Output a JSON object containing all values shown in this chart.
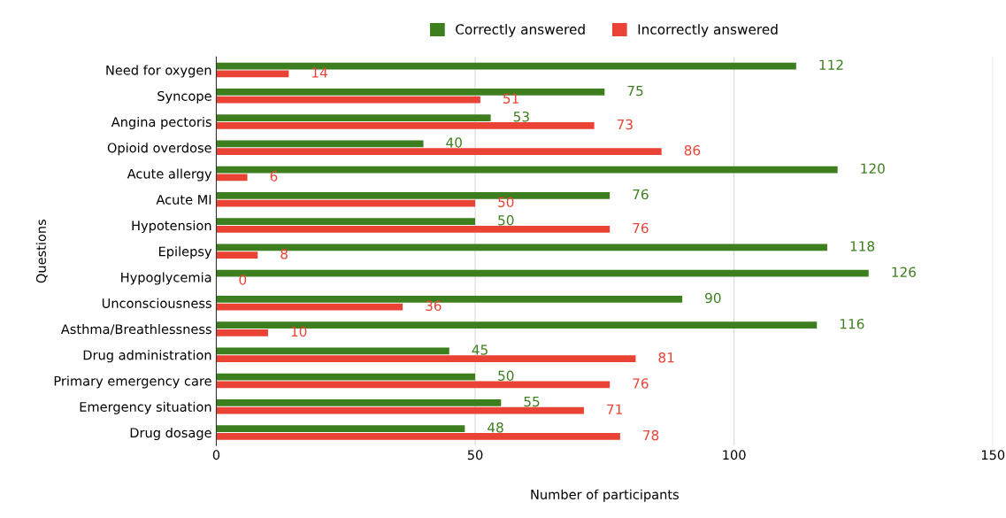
{
  "chart_data": {
    "type": "bar",
    "orientation": "horizontal",
    "xlabel": "Number of participants",
    "ylabel": "Questions",
    "categories": [
      "Need for oxygen",
      "Syncope",
      "Angina pectoris",
      "Opioid overdose",
      "Acute allergy",
      "Acute MI",
      "Hypotension",
      "Epilepsy",
      "Hypoglycemia",
      "Unconsciousness",
      "Asthma/Breathlessness",
      "Drug administration",
      "Primary emergency care",
      "Emergency situation",
      "Drug dosage"
    ],
    "series": [
      {
        "name": "Correctly answered",
        "color": "#3d7f1f",
        "values": [
          112,
          75,
          53,
          40,
          120,
          76,
          50,
          118,
          126,
          90,
          116,
          45,
          50,
          55,
          48
        ]
      },
      {
        "name": "Incorrectly answered",
        "color": "#ea4335",
        "values": [
          14,
          51,
          73,
          86,
          6,
          50,
          76,
          8,
          0,
          36,
          10,
          81,
          76,
          71,
          78
        ]
      }
    ],
    "xlim": [
      0,
      150
    ],
    "xticks": [
      0,
      50,
      100,
      150
    ],
    "grid": "x",
    "legend": "top",
    "data_labels": true
  }
}
